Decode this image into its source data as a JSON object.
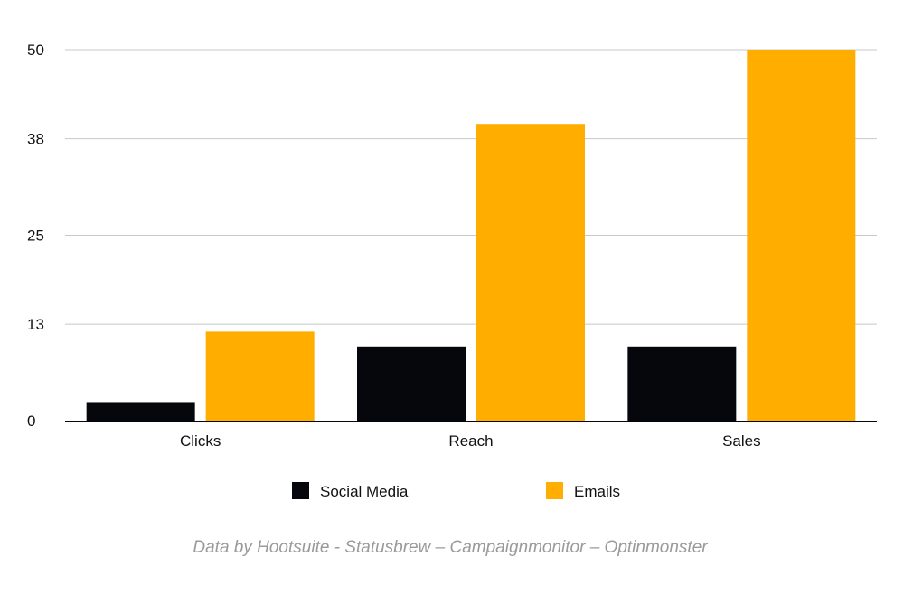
{
  "chart_data": {
    "type": "bar",
    "categories": [
      "Clicks",
      "Reach",
      "Sales"
    ],
    "series": [
      {
        "name": "Social Media",
        "color": "#05070d",
        "values": [
          2.5,
          10,
          10
        ]
      },
      {
        "name": "Emails",
        "color": "#ffae00",
        "values": [
          12,
          40,
          50
        ]
      }
    ],
    "yticks": [
      "0",
      "13",
      "25",
      "38",
      "50"
    ],
    "ylim": [
      0,
      50
    ],
    "grid": true,
    "legend": "bottom-center",
    "title": "",
    "xlabel": "",
    "ylabel": ""
  },
  "source_note": "Data by Hootsuite - Statusbrew – Campaignmonitor – Optinmonster"
}
